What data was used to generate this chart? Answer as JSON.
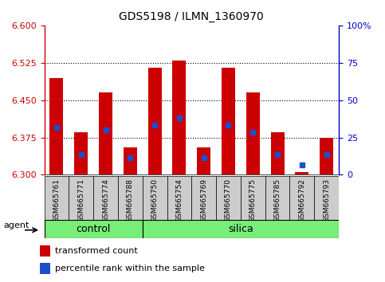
{
  "title": "GDS5198 / ILMN_1360970",
  "samples": [
    "GSM665761",
    "GSM665771",
    "GSM665774",
    "GSM665788",
    "GSM665750",
    "GSM665754",
    "GSM665769",
    "GSM665770",
    "GSM665775",
    "GSM665785",
    "GSM665792",
    "GSM665793"
  ],
  "groups": [
    "control",
    "control",
    "control",
    "control",
    "silica",
    "silica",
    "silica",
    "silica",
    "silica",
    "silica",
    "silica",
    "silica"
  ],
  "red_values": [
    6.495,
    6.385,
    6.465,
    6.355,
    6.515,
    6.53,
    6.355,
    6.515,
    6.465,
    6.385,
    6.305,
    6.375
  ],
  "blue_values": [
    6.395,
    6.34,
    6.39,
    6.335,
    6.4,
    6.415,
    6.335,
    6.4,
    6.385,
    6.34,
    6.32,
    6.34
  ],
  "y_min": 6.3,
  "y_max": 6.6,
  "y_ticks_left": [
    6.3,
    6.375,
    6.45,
    6.525,
    6.6
  ],
  "y_ticks_right": [
    0,
    25,
    50,
    75,
    100
  ],
  "bar_color": "#cc0000",
  "blue_color": "#1c4fcc",
  "bar_width": 0.55,
  "agent_label": "agent",
  "group_label_control": "control",
  "group_label_silica": "silica",
  "legend_red": "transformed count",
  "legend_blue": "percentile rank within the sample",
  "bg_color": "#ffffff",
  "tick_color_left": "#cc0000",
  "tick_color_right": "#0000cc",
  "label_area_color": "#cccccc",
  "group_color": "#77ee77",
  "n_control": 4,
  "n_silica": 8
}
